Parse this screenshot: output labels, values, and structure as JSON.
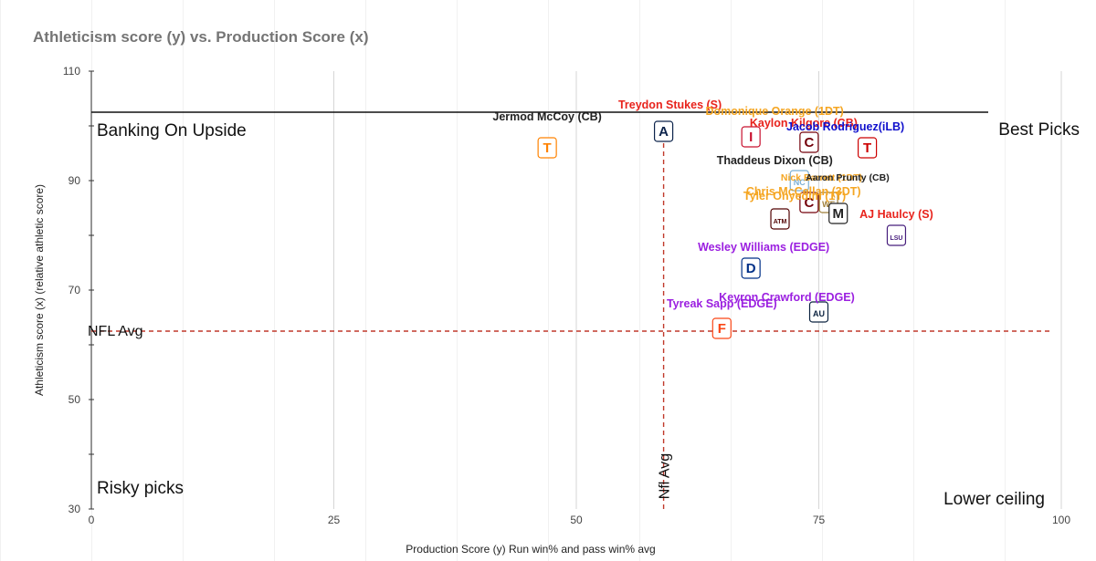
{
  "chart_data": {
    "type": "scatter",
    "title": "Athleticism score (y) vs. Production Score (x)",
    "xlabel": "Production Score (y) Run win% and pass win% avg",
    "ylabel": "Athleticism score (x) (relative athletic score)",
    "xlim": [
      0,
      100
    ],
    "ylim": [
      30,
      110
    ],
    "x_ticks": [
      "0",
      "25",
      "50",
      "75",
      "100"
    ],
    "y_ticks": [
      "30",
      "50",
      "70",
      "90",
      "110"
    ],
    "grid": "vertical",
    "reference_lines": [
      {
        "orientation": "horizontal",
        "value": 102.5,
        "style": "solid",
        "color": "#111111"
      },
      {
        "orientation": "horizontal",
        "value": 62.5,
        "style": "dashed",
        "color": "#c0392b",
        "label": "NFL Avg"
      },
      {
        "orientation": "vertical",
        "value": 59,
        "style": "dashed",
        "color": "#c0392b",
        "label": "Nfl Avg"
      }
    ],
    "quadrant_labels": [
      {
        "text": "Banking On Upside",
        "position": "top-left"
      },
      {
        "text": "Best Picks",
        "position": "top-right"
      },
      {
        "text": "Risky picks",
        "position": "bottom-left"
      },
      {
        "text": "Lower ceiling",
        "position": "bottom-right"
      }
    ],
    "points": [
      {
        "label": "Jermod McCoy (CB)",
        "x": 47,
        "y": 96,
        "color": "#222222",
        "school": "Tennessee",
        "logo_text": "T",
        "logo_color": "#ff8200"
      },
      {
        "label": "Treydon Stukes (S)",
        "x": 59,
        "y": 99,
        "color": "#e8231c",
        "school": "Arizona",
        "logo_text": "A",
        "logo_color": "#0c234b"
      },
      {
        "label": "Domonique Orange (1DT)",
        "x": 68,
        "y": 98,
        "color": "#f5a623",
        "school": "Iowa State",
        "logo_text": "I",
        "logo_color": "#c8102e"
      },
      {
        "label": "Kaylon Kilgore (CB)",
        "x": 74,
        "y": 97,
        "color": "#e8231c",
        "school": "South Carolina",
        "logo_text": "C",
        "logo_color": "#73000a"
      },
      {
        "label": "Jacob Rodriguez(iLB)",
        "x": 80,
        "y": 96,
        "color": "#1010cc",
        "school": "Texas Tech",
        "logo_text": "T",
        "logo_color": "#cc0000"
      },
      {
        "label": "Thaddeus Dixon (CB)",
        "x": 73,
        "y": 90,
        "color": "#222222",
        "school": "North Carolina",
        "logo_text": "NC",
        "logo_color": "#7bafd4"
      },
      {
        "label": "Nick Barrett (1DT)",
        "x": 74,
        "y": 86,
        "color": "#f5a623",
        "school": "South Carolina",
        "logo_text": "C",
        "logo_color": "#73000a"
      },
      {
        "label": "Aaron Prunty (CB)",
        "x": 76,
        "y": 86,
        "color": "#222222",
        "school": "Wake Forest",
        "logo_text": "WF",
        "logo_color": "#9e7e38"
      },
      {
        "label": "Chris McCellan (3DT)",
        "x": 77,
        "y": 84,
        "color": "#f5a623",
        "school": "Missouri",
        "logo_text": "M",
        "logo_color": "#222222"
      },
      {
        "label": "Tyler Onyedim (1T)",
        "x": 71,
        "y": 83,
        "color": "#f5a623",
        "school": "Texas A&M",
        "logo_text": "ATM",
        "logo_color": "#500000"
      },
      {
        "label": "AJ Haulcy (S)",
        "x": 83,
        "y": 80,
        "color": "#e8231c",
        "school": "LSU",
        "logo_text": "LSU",
        "logo_color": "#461d7c"
      },
      {
        "label": "Wesley Williams (EDGE)",
        "x": 68,
        "y": 74,
        "color": "#9b1fe0",
        "school": "Duke",
        "logo_text": "D",
        "logo_color": "#003087"
      },
      {
        "label": "Keyron Crawford (EDGE)",
        "x": 75,
        "y": 66,
        "color": "#9b1fe0",
        "school": "Auburn",
        "logo_text": "AU",
        "logo_color": "#0c2340"
      },
      {
        "label": "Tyreak Sapp (EDGE)",
        "x": 65,
        "y": 63,
        "color": "#9b1fe0",
        "school": "Florida",
        "logo_text": "F",
        "logo_color": "#fa4616"
      }
    ]
  }
}
